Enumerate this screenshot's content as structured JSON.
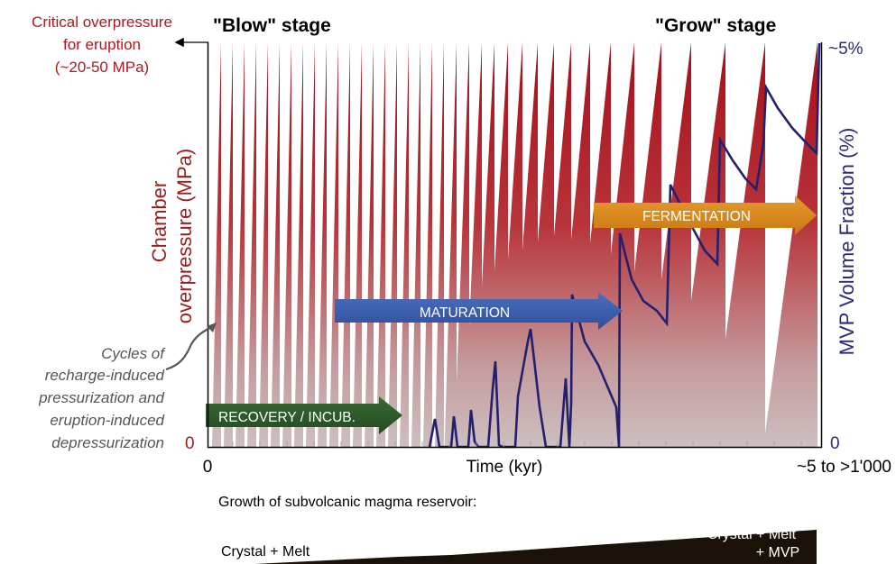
{
  "labels": {
    "critical_line1": "Critical overpressure",
    "critical_line2": "for eruption",
    "critical_line3": "(~20-50 MPa)",
    "blow_stage": "\"Blow\" stage",
    "grow_stage": "\"Grow\" stage",
    "left_axis_line1": "Chamber",
    "left_axis_line2": "overpressure (MPa)",
    "right_axis": "MVP Volume Fraction (%)",
    "right_top": "~5%",
    "right_zero": "0",
    "left_zero": "0",
    "x_zero": "0",
    "x_label": "Time (kyr)",
    "x_end": "~5 to >1'000",
    "cycles_line1": "Cycles of",
    "cycles_line2": "recharge-induced",
    "cycles_line3": "pressurization and",
    "cycles_line4": "eruption-induced",
    "cycles_line5": "depressurization",
    "growth_title": "Growth of subvolcanic magma reservoir:",
    "growth_left": "Crystal + Melt",
    "growth_right_line1": "Crystal + Melt",
    "growth_right_line2": "+ MVP"
  },
  "phases": [
    {
      "label": "RECOVERY / INCUB.",
      "color": "#2f5a2b"
    },
    {
      "label": "MATURATION",
      "color": "#3558a8"
    },
    {
      "label": "FERMENTATION",
      "color": "#d98c1f"
    }
  ],
  "colors": {
    "pressure_red": "#b5121b",
    "mvp_line": "#24206e",
    "critical_text": "#b0171f",
    "right_axis_text": "#2b2a7a",
    "left_axis_text": "#9c1c1c"
  }
}
